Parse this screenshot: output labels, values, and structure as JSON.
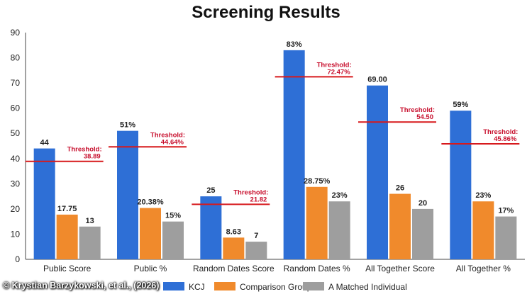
{
  "chart_data": {
    "type": "bar",
    "title": "Screening Results",
    "categories": [
      "Public Score",
      "Public %",
      "Random Dates Score",
      "Random Dates %",
      "All Together Score",
      "All Together %"
    ],
    "series": [
      {
        "name": "KCJ",
        "color": "#2e6fd6",
        "values": [
          44,
          51,
          25,
          83,
          69,
          59
        ],
        "labels": [
          "44",
          "51%",
          "25",
          "83%",
          "69.00",
          "59%"
        ]
      },
      {
        "name": "Comparison Group",
        "color": "#f08a2c",
        "values": [
          17.75,
          20.38,
          8.63,
          28.75,
          26,
          23
        ],
        "labels": [
          "17.75",
          "20.38%",
          "8.63",
          "28.75%",
          "26",
          "23%"
        ]
      },
      {
        "name": "A Matched Individual",
        "color": "#9e9e9e",
        "values": [
          13,
          15,
          7,
          23,
          20,
          17
        ],
        "labels": [
          "13",
          "15%",
          "7",
          "23%",
          "20",
          "17%"
        ]
      }
    ],
    "thresholds": [
      {
        "value": 38.89,
        "label": "Threshold:",
        "value_label": "38.89"
      },
      {
        "value": 44.64,
        "label": "Threshold:",
        "value_label": "44.64%"
      },
      {
        "value": 21.82,
        "label": "Threshold:",
        "value_label": "21.82"
      },
      {
        "value": 72.47,
        "label": "Threshold:",
        "value_label": "72.47%"
      },
      {
        "value": 54.5,
        "label": "Threshold:",
        "value_label": "54.50"
      },
      {
        "value": 45.86,
        "label": "Threshold:",
        "value_label": "45.86%"
      }
    ],
    "threshold_color": "#d7191c",
    "ylim": [
      0,
      90
    ],
    "yticks": [
      0,
      10,
      20,
      30,
      40,
      50,
      60,
      70,
      80,
      90
    ],
    "grid": false,
    "legend_position": "bottom"
  },
  "credit": "© Krystian Barzykowski, et al., (2026)"
}
